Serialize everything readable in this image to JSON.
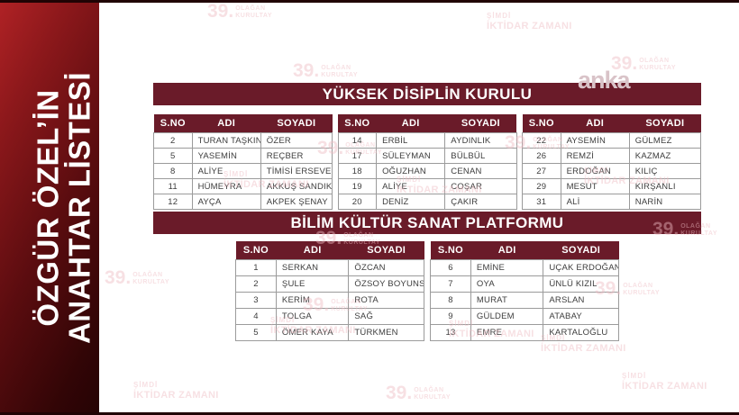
{
  "sidebar": {
    "title_line1": "ÖZGÜR ÖZEL’İN",
    "title_line2": "ANAHTAR LİSTESİ"
  },
  "logo": {
    "text": "anka"
  },
  "watermarks": {
    "congress_number": "39.",
    "congress_line1": "OLAĞAN",
    "congress_line2": "KURULTAY",
    "slogan_line1": "ŞİMDİ",
    "slogan_line2": "İKTİDAR ZAMANI"
  },
  "colors": {
    "maroon": "#6a1b29",
    "sidebar_red": "#b02225",
    "border_gray": "#9b9b9b",
    "watermark_pink": "#eebcc3",
    "strip_dark": "#200304"
  },
  "sections": [
    {
      "title": "YÜKSEK DİSİPLİN KURULU",
      "columns": [
        "S.NO",
        "ADI",
        "SOYADI"
      ],
      "tables": [
        {
          "rows": [
            [
              "2",
              "TURAN TAŞKIN",
              "ÖZER"
            ],
            [
              "5",
              "YASEMİN",
              "REÇBER"
            ],
            [
              "8",
              "ALİYE",
              "TİMİSİ ERSEVER"
            ],
            [
              "11",
              "HÜMEYRA",
              "AKKUŞ SANDIKCI"
            ],
            [
              "12",
              "AYÇA",
              "AKPEK ŞENAY"
            ]
          ]
        },
        {
          "rows": [
            [
              "14",
              "ERBİL",
              "AYDINLIK"
            ],
            [
              "17",
              "SÜLEYMAN",
              "BÜLBÜL"
            ],
            [
              "18",
              "OĞUZHAN",
              "CENAN"
            ],
            [
              "19",
              "ALİYE",
              "COŞAR"
            ],
            [
              "20",
              "DENİZ",
              "ÇAKIR"
            ]
          ]
        },
        {
          "rows": [
            [
              "22",
              "AYSEMİN",
              "GÜLMEZ"
            ],
            [
              "26",
              "REMZİ",
              "KAZMAZ"
            ],
            [
              "27",
              "ERDOĞAN",
              "KILIÇ"
            ],
            [
              "29",
              "MESUT",
              "KIRŞANLI"
            ],
            [
              "31",
              "ALİ",
              "NARİN"
            ]
          ]
        }
      ]
    },
    {
      "title": "BİLİM KÜLTÜR SANAT PLATFORMU",
      "columns": [
        "S.NO",
        "ADI",
        "SOYADI"
      ],
      "tables": [
        {
          "rows": [
            [
              "1",
              "SERKAN",
              "ÖZCAN"
            ],
            [
              "2",
              "ŞULE",
              "ÖZSOY BOYUNSUZ"
            ],
            [
              "3",
              "KERİM",
              "ROTA"
            ],
            [
              "4",
              "TOLGA",
              "SAĞ"
            ],
            [
              "5",
              "ÖMER KAYA",
              "TÜRKMEN"
            ]
          ]
        },
        {
          "rows": [
            [
              "6",
              "EMİNE",
              "UÇAK ERDOĞAN"
            ],
            [
              "7",
              "OYA",
              "ÜNLÜ KIZIL"
            ],
            [
              "8",
              "MURAT",
              "ARSLAN"
            ],
            [
              "9",
              "GÜLDEM",
              "ATABAY"
            ],
            [
              "13",
              "EMRE",
              "KARTALOĞLU"
            ]
          ]
        }
      ]
    }
  ]
}
